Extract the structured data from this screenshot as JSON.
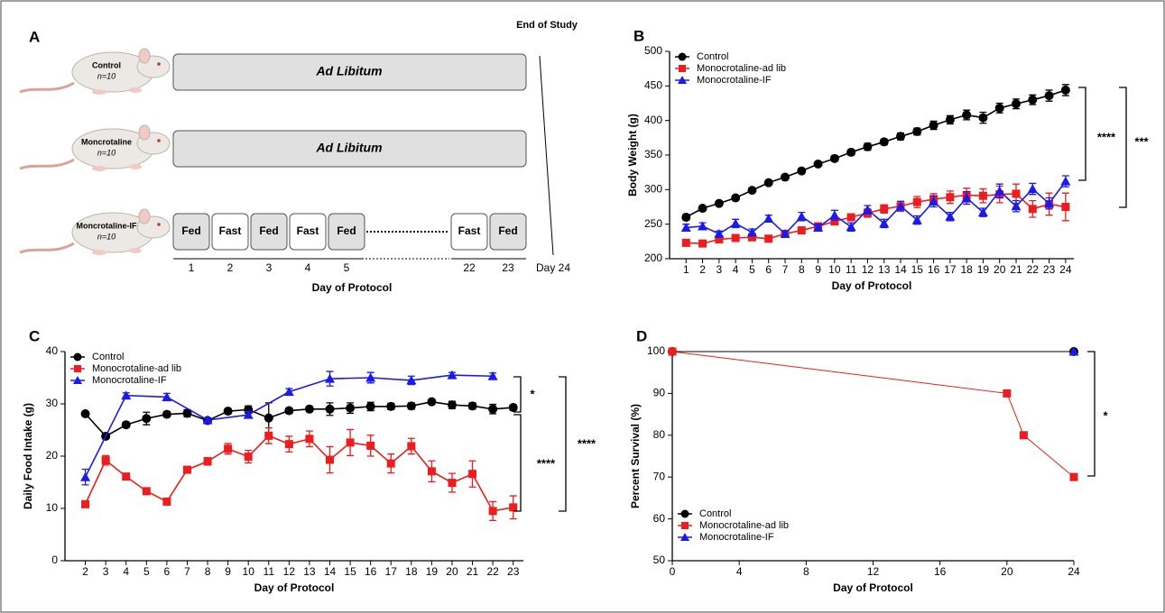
{
  "diagram": {
    "label": "A",
    "end_label": "End of Study",
    "groups": [
      {
        "name": "Control",
        "n": "n=10"
      },
      {
        "name": "Moncrotaline",
        "n": "n=10"
      },
      {
        "name": "Moncrotaline-IF",
        "n": "n=10"
      }
    ],
    "bars": [
      "Ad Libitum",
      "Ad Libitum"
    ],
    "schedule": [
      "Fed",
      "Fast",
      "Fed",
      "Fast",
      "Fed",
      "Fast",
      "Fed"
    ],
    "days": [
      "1",
      "2",
      "3",
      "4",
      "5",
      "22",
      "23"
    ],
    "end_day": "Day 24",
    "xlabel": "Day of Protocol"
  },
  "chart_data": [
    {
      "type": "line",
      "panel_label": "B",
      "xlabel": "Day of Protocol",
      "ylabel": "Body Weight (g)",
      "x": [
        1,
        2,
        3,
        4,
        5,
        6,
        7,
        8,
        9,
        10,
        11,
        12,
        13,
        14,
        15,
        16,
        17,
        18,
        19,
        20,
        21,
        22,
        23,
        24
      ],
      "xlim": [
        0,
        24.5
      ],
      "xticks": [
        1,
        2,
        3,
        4,
        5,
        6,
        7,
        8,
        9,
        10,
        11,
        12,
        13,
        14,
        15,
        16,
        17,
        18,
        19,
        20,
        21,
        22,
        23,
        24
      ],
      "ylim": [
        200,
        500
      ],
      "yticks": [
        200,
        250,
        300,
        350,
        400,
        450,
        500
      ],
      "legend": "upper left",
      "series": [
        {
          "name": "Control",
          "color": "#000000",
          "marker": "o",
          "values": [
            260,
            273,
            280,
            288,
            299,
            310,
            318,
            327,
            337,
            345,
            354,
            362,
            369,
            377,
            384,
            393,
            401,
            408,
            404,
            418,
            424,
            430,
            436,
            444
          ],
          "errors": [
            4,
            3,
            3,
            3,
            3,
            3,
            3,
            3,
            3,
            4,
            4,
            5,
            4,
            5,
            5,
            6,
            6,
            7,
            8,
            7,
            7,
            7,
            8,
            8
          ]
        },
        {
          "name": "Monocrotaline-ad lib",
          "color": "#ee1c1c",
          "marker": "s",
          "values": [
            223,
            222,
            228,
            230,
            231,
            229,
            236,
            241,
            247,
            254,
            260,
            266,
            272,
            276,
            282,
            286,
            289,
            292,
            291,
            293,
            294,
            272,
            279,
            275
          ],
          "errors": [
            4,
            4,
            4,
            4,
            4,
            4,
            4,
            4,
            4,
            5,
            5,
            6,
            6,
            7,
            8,
            8,
            9,
            10,
            10,
            12,
            14,
            12,
            16,
            20
          ]
        },
        {
          "name": "Monocrotaline-IF",
          "color": "#1a1aee",
          "marker": "^",
          "values": [
            245,
            247,
            236,
            251,
            238,
            258,
            236,
            261,
            245,
            263,
            246,
            271,
            251,
            276,
            256,
            283,
            261,
            288,
            267,
            298,
            276,
            301,
            280,
            312
          ],
          "errors": [
            5,
            5,
            4,
            6,
            5,
            5,
            4,
            6,
            5,
            7,
            6,
            6,
            6,
            7,
            6,
            8,
            6,
            9,
            6,
            10,
            8,
            8,
            8,
            8
          ]
        }
      ],
      "annotations": [
        "****",
        "***"
      ]
    },
    {
      "type": "line",
      "panel_label": "C",
      "xlabel": "Day of Protocol",
      "ylabel": "Daily Food Intake (g)",
      "x": [
        2,
        3,
        4,
        5,
        6,
        7,
        8,
        9,
        10,
        11,
        12,
        13,
        14,
        15,
        16,
        17,
        18,
        19,
        20,
        21,
        22,
        23
      ],
      "xlim": [
        1,
        23.5
      ],
      "xticks": [
        2,
        3,
        4,
        5,
        6,
        7,
        8,
        9,
        10,
        11,
        12,
        13,
        14,
        15,
        16,
        17,
        18,
        19,
        20,
        21,
        22,
        23
      ],
      "ylim": [
        0,
        40
      ],
      "yticks": [
        0,
        10,
        20,
        30,
        40
      ],
      "legend": "upper left",
      "series": [
        {
          "name": "Control",
          "color": "#000000",
          "marker": "o",
          "values": [
            28.1,
            23.8,
            26.0,
            27.2,
            28.0,
            28.2,
            26.8,
            28.6,
            28.9,
            27.3,
            28.7,
            29.0,
            29.0,
            29.2,
            29.5,
            29.5,
            29.6,
            30.4,
            29.8,
            29.6,
            29.0,
            29.3
          ],
          "errors": [
            0.4,
            0.5,
            0.5,
            1.2,
            0.5,
            0.7,
            0.4,
            0.5,
            0.7,
            2.9,
            0.5,
            0.5,
            1.2,
            1.0,
            0.8,
            0.6,
            0.6,
            0.4,
            0.7,
            0.6,
            0.9,
            0.5
          ]
        },
        {
          "name": "Monocrotaline-ad lib",
          "color": "#ee1c1c",
          "marker": "s",
          "values": [
            10.8,
            19.2,
            16.1,
            13.3,
            11.3,
            17.4,
            19.0,
            21.4,
            19.9,
            23.9,
            22.3,
            23.3,
            19.3,
            22.6,
            22.0,
            18.6,
            21.9,
            17.1,
            14.9,
            16.6,
            9.5,
            10.2
          ],
          "errors": [
            0.6,
            0.9,
            0.6,
            0.5,
            0.5,
            0.5,
            0.7,
            1.0,
            1.2,
            1.5,
            1.5,
            1.5,
            2.5,
            2.5,
            2.0,
            1.8,
            1.5,
            2.0,
            1.8,
            2.5,
            1.8,
            2.2
          ]
        },
        {
          "name": "Monocrotaline-IF",
          "color": "#1a1aee",
          "marker": "^",
          "x": [
            2,
            4,
            6,
            8,
            10,
            12,
            14,
            16,
            18,
            20,
            22
          ],
          "values": [
            16.0,
            31.6,
            31.3,
            26.9,
            27.9,
            32.3,
            34.8,
            35.0,
            34.5,
            35.5,
            35.3
          ],
          "errors": [
            1.5,
            0.5,
            0.7,
            0.4,
            0.6,
            0.6,
            1.4,
            1.0,
            0.8,
            0.5,
            0.6
          ]
        }
      ],
      "annotations": [
        "*",
        "****",
        "****"
      ]
    },
    {
      "type": "line",
      "panel_label": "D",
      "xlabel": "Day of Protocol",
      "ylabel": "Percent Survival (%)",
      "xlim": [
        0,
        24
      ],
      "xticks": [
        0,
        4,
        8,
        12,
        16,
        20,
        24
      ],
      "ylim": [
        50,
        100
      ],
      "yticks": [
        50,
        60,
        70,
        80,
        90,
        100
      ],
      "legend": "lower left",
      "series": [
        {
          "name": "Control",
          "color": "#000000",
          "marker": "o",
          "x": [
            0,
            24
          ],
          "values": [
            100,
            100
          ]
        },
        {
          "name": "Monocrotaline-ad lib",
          "color": "#ee1c1c",
          "marker": "s",
          "x": [
            0,
            20,
            21,
            24
          ],
          "values": [
            100,
            90,
            80,
            70
          ]
        },
        {
          "name": "Monocrotaline-IF",
          "color": "#1a1aee",
          "marker": "^",
          "x": [
            24
          ],
          "values": [
            100
          ]
        }
      ],
      "annotations": [
        "*"
      ]
    }
  ]
}
